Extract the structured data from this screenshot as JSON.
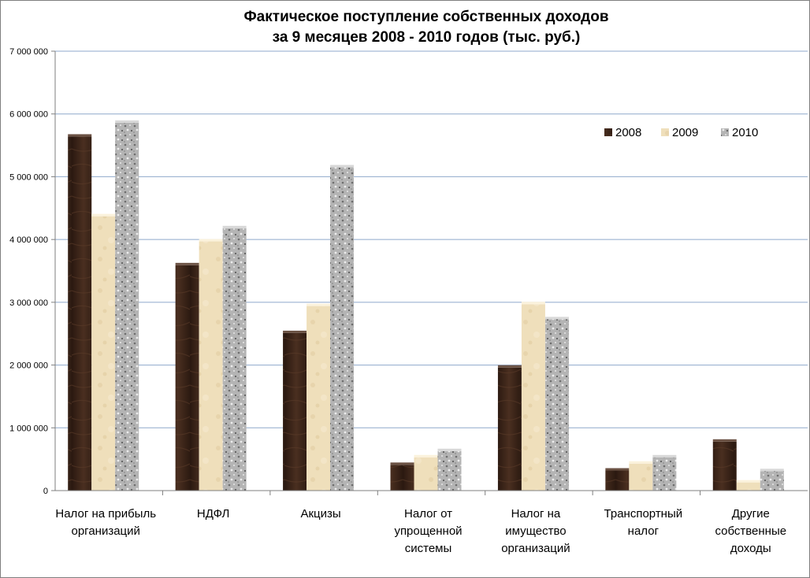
{
  "chart_data": {
    "type": "bar",
    "title_lines": [
      "Фактическое поступление собственных доходов",
      "за 9 месяцев 2008 - 2010 годов (тыс. руб.)"
    ],
    "categories": [
      [
        "Налог на прибыль",
        "организаций"
      ],
      [
        "НДФЛ"
      ],
      [
        "Акцизы"
      ],
      [
        "Налог от",
        "упрощенной",
        "системы"
      ],
      [
        "Налог на",
        "имущество",
        "организаций"
      ],
      [
        "Транспортный",
        "налог"
      ],
      [
        "Другие",
        "собственные",
        "доходы"
      ]
    ],
    "series": [
      {
        "name": "2008",
        "values": [
          5640000,
          3590000,
          2510000,
          410000,
          1960000,
          320000,
          780000
        ]
      },
      {
        "name": "2009",
        "values": [
          4370000,
          3970000,
          2940000,
          530000,
          2970000,
          430000,
          130000
        ]
      },
      {
        "name": "2010",
        "values": [
          5860000,
          4180000,
          5150000,
          630000,
          2730000,
          530000,
          310000
        ]
      }
    ],
    "y_ticks": [
      "0",
      "1 000 000",
      "2 000 000",
      "3 000 000",
      "4 000 000",
      "5 000 000",
      "6 000 000",
      "7 000 000"
    ],
    "ylim": [
      0,
      7000000
    ],
    "grid": true,
    "legend_position": "top-right",
    "colors": {
      "2008": "#3a2418",
      "2009": "#ecdcb6",
      "2010": "#a8a8a8",
      "grid": "#8fa9cc",
      "axis": "#7f7f7f"
    }
  }
}
